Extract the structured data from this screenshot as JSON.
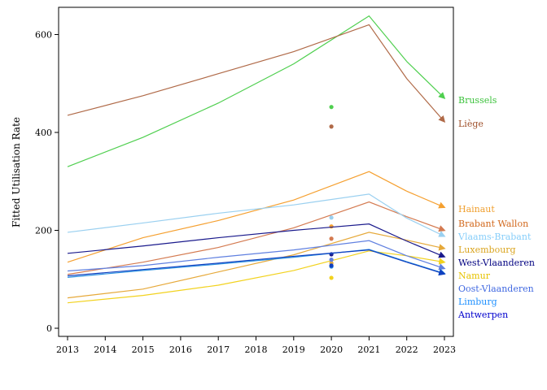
{
  "chart_data": {
    "type": "line",
    "title": "",
    "xlabel": "",
    "ylabel": "Fitted Utilisation Rate",
    "xlim": [
      2013,
      2023
    ],
    "ylim": [
      0,
      640
    ],
    "x_ticks": [
      "2013",
      "2014",
      "2015",
      "2016",
      "2017",
      "2018",
      "2019",
      "2020",
      "2021",
      "2022",
      "2023"
    ],
    "y_ticks": [
      "0",
      "200",
      "400",
      "600"
    ],
    "x": [
      2013,
      2015,
      2017,
      2019,
      2021,
      2022,
      2023
    ],
    "grid": false,
    "legend": "right, end-of-line labels",
    "series": [
      {
        "name": "Brussels",
        "color": "#4fcf4f",
        "values": [
          330,
          390,
          460,
          540,
          638,
          545,
          470
        ],
        "point_2020": 452
      },
      {
        "name": "Liège",
        "color": "#b06a48",
        "values": [
          435,
          475,
          520,
          565,
          620,
          510,
          422
        ],
        "point_2020": 412
      },
      {
        "name": "Hainaut",
        "color": "#f5a030",
        "values": [
          135,
          185,
          220,
          262,
          320,
          280,
          247
        ],
        "point_2020": 208
      },
      {
        "name": "Brabant Wallon",
        "color": "#d47a50",
        "values": [
          110,
          135,
          165,
          205,
          258,
          228,
          200
        ],
        "point_2020": 183
      },
      {
        "name": "Vlaams-Brabant",
        "color": "#9ad0f0",
        "values": [
          196,
          215,
          235,
          252,
          274,
          225,
          188
        ],
        "point_2020": 226
      },
      {
        "name": "Luxembourg",
        "color": "#e6a93a",
        "values": [
          62,
          80,
          115,
          150,
          196,
          180,
          163
        ],
        "point_2020": 133
      },
      {
        "name": "West-Vlaanderen",
        "color": "#1a1a8c",
        "values": [
          153,
          168,
          185,
          200,
          213,
          178,
          146
        ],
        "point_2020": 151
      },
      {
        "name": "Namur",
        "color": "#f2d21e",
        "values": [
          52,
          67,
          88,
          118,
          158,
          148,
          135
        ],
        "point_2020": 103
      },
      {
        "name": "Oost-Vlaanderen",
        "color": "#6080e0",
        "values": [
          117,
          128,
          145,
          160,
          179,
          148,
          122
        ],
        "point_2020": 140
      },
      {
        "name": "Limburg",
        "color": "#2a90e0",
        "values": [
          104,
          118,
          131,
          145,
          161,
          136,
          112
        ],
        "point_2020": 126
      },
      {
        "name": "Antwerpen",
        "color": "#1040c0",
        "values": [
          107,
          120,
          133,
          147,
          160,
          135,
          111
        ],
        "point_2020": 128
      }
    ],
    "label_order": [
      "Brussels",
      "Liège",
      "Hainaut",
      "Brabant Wallon",
      "Vlaams-Brabant",
      "Luxembourg",
      "West-Vlaanderen",
      "Namur",
      "Oost-Vlaanderen",
      "Limburg",
      "Antwerpen"
    ],
    "label_colors": {
      "Brussels": "#3cc23c",
      "Liège": "#a0522d",
      "Hainaut": "#f0a030",
      "Brabant Wallon": "#d2691e",
      "Vlaams-Brabant": "#87cefa",
      "Luxembourg": "#daa520",
      "West-Vlaanderen": "#000080",
      "Namur": "#e6c300",
      "Oost-Vlaanderen": "#4169e1",
      "Limburg": "#1e90ff",
      "Antwerpen": "#0000cd"
    }
  }
}
